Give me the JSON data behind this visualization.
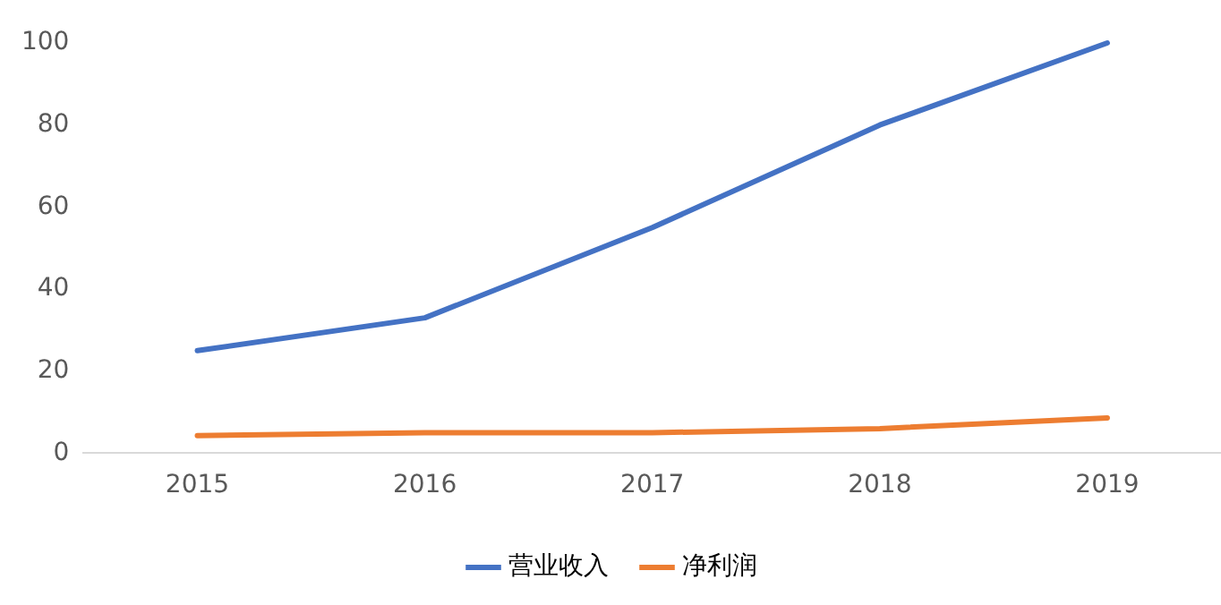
{
  "chart_data": {
    "type": "line",
    "categories": [
      "2015",
      "2016",
      "2017",
      "2018",
      "2019"
    ],
    "series": [
      {
        "name": "营业收入",
        "color": "#4472c4",
        "values": [
          25,
          33,
          55,
          80,
          100
        ]
      },
      {
        "name": "净利润",
        "color": "#ed7d31",
        "values": [
          4.3,
          5,
          5,
          6,
          8.6
        ]
      }
    ],
    "ylim": [
      0,
      100
    ],
    "yticks": [
      0,
      20,
      40,
      60,
      80,
      100
    ],
    "grid": false,
    "legend": "bottom",
    "marker": "none",
    "line_style": "solid"
  }
}
